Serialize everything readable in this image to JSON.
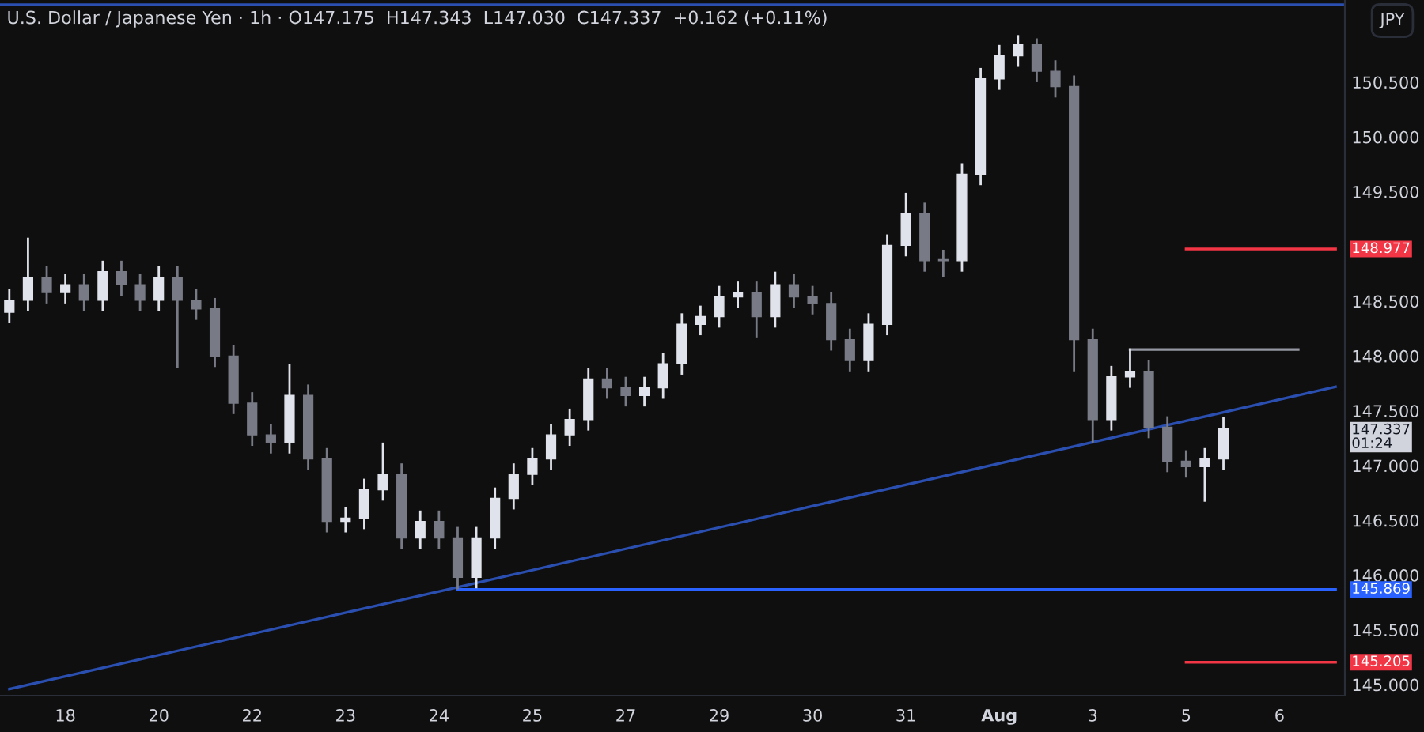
{
  "chart_data": {
    "type": "candlestick",
    "title": "U.S. Dollar / Japanese Yen · 1h · O147.175  H147.343  L147.030  C147.337  +0.162 (+0.11%)",
    "ylabel": "JPY",
    "categories": [
      null,
      null,
      null,
      "18",
      null,
      null,
      null,
      null,
      "20",
      null,
      null,
      null,
      null,
      "22",
      null,
      null,
      null,
      null,
      "23",
      null,
      null,
      null,
      null,
      "24",
      null,
      null,
      null,
      null,
      "25",
      null,
      null,
      null,
      null,
      "27",
      null,
      null,
      null,
      null,
      "29",
      null,
      null,
      null,
      null,
      "30",
      null,
      null,
      null,
      null,
      "31",
      null,
      null,
      null,
      null,
      "Aug",
      null,
      null,
      null,
      null,
      "3",
      null,
      null,
      null,
      null,
      "5",
      null,
      null,
      null,
      null,
      "6",
      null,
      null,
      null
    ],
    "ohlc": [
      [
        148.4,
        148.61,
        148.3,
        148.51
      ],
      [
        148.51,
        149.08,
        148.41,
        148.72
      ],
      [
        148.72,
        148.82,
        148.48,
        148.58
      ],
      [
        148.58,
        148.75,
        148.48,
        148.65
      ],
      [
        148.65,
        148.75,
        148.41,
        148.51
      ],
      [
        148.51,
        148.87,
        148.41,
        148.77
      ],
      [
        148.77,
        148.87,
        148.55,
        148.65
      ],
      [
        148.65,
        148.75,
        148.41,
        148.51
      ],
      [
        148.51,
        148.82,
        148.41,
        148.72
      ],
      [
        148.72,
        148.82,
        147.89,
        148.51
      ],
      [
        148.51,
        148.61,
        148.33,
        148.43
      ],
      [
        148.43,
        148.53,
        147.9,
        148.0
      ],
      [
        148.0,
        148.1,
        147.47,
        147.57
      ],
      [
        147.57,
        147.67,
        147.18,
        147.28
      ],
      [
        147.28,
        147.38,
        147.11,
        147.21
      ],
      [
        147.21,
        147.93,
        147.11,
        147.64
      ],
      [
        147.64,
        147.74,
        146.96,
        147.06
      ],
      [
        147.06,
        147.16,
        146.39,
        146.49
      ],
      [
        146.49,
        146.62,
        146.39,
        146.52
      ],
      [
        146.52,
        146.88,
        146.42,
        146.78
      ],
      [
        146.78,
        147.21,
        146.68,
        146.92
      ],
      [
        146.92,
        147.02,
        146.24,
        146.34
      ],
      [
        146.34,
        146.59,
        146.24,
        146.49
      ],
      [
        146.49,
        146.59,
        146.24,
        146.34
      ],
      [
        146.34,
        146.44,
        145.87,
        145.98
      ],
      [
        145.98,
        146.44,
        145.88,
        146.34
      ],
      [
        146.34,
        146.8,
        146.24,
        146.7
      ],
      [
        146.7,
        147.02,
        146.6,
        146.92
      ],
      [
        146.92,
        147.16,
        146.82,
        147.06
      ],
      [
        147.06,
        147.38,
        146.96,
        147.28
      ],
      [
        147.28,
        147.52,
        147.18,
        147.42
      ],
      [
        147.42,
        147.89,
        147.32,
        147.79
      ],
      [
        147.79,
        147.89,
        147.61,
        147.71
      ],
      [
        147.71,
        147.81,
        147.54,
        147.64
      ],
      [
        147.64,
        147.81,
        147.54,
        147.71
      ],
      [
        147.71,
        148.03,
        147.61,
        147.93
      ],
      [
        147.93,
        148.39,
        147.83,
        148.29
      ],
      [
        148.29,
        148.46,
        148.19,
        148.36
      ],
      [
        148.36,
        148.64,
        148.26,
        148.54
      ],
      [
        148.54,
        148.68,
        148.44,
        148.58
      ],
      [
        148.58,
        148.68,
        148.17,
        148.36
      ],
      [
        148.36,
        148.77,
        148.26,
        148.65
      ],
      [
        148.65,
        148.75,
        148.44,
        148.54
      ],
      [
        148.54,
        148.64,
        148.38,
        148.48
      ],
      [
        148.48,
        148.58,
        148.05,
        148.15
      ],
      [
        148.15,
        148.25,
        147.86,
        147.96
      ],
      [
        147.96,
        148.39,
        147.86,
        148.29
      ],
      [
        148.29,
        149.11,
        148.19,
        149.01
      ],
      [
        149.01,
        149.49,
        148.91,
        149.3
      ],
      [
        149.3,
        149.4,
        148.77,
        148.87
      ],
      [
        148.87,
        148.97,
        148.72,
        148.87
      ],
      [
        148.87,
        149.76,
        148.77,
        149.66
      ],
      [
        149.66,
        150.63,
        149.56,
        150.53
      ],
      [
        150.53,
        150.84,
        150.43,
        150.74
      ],
      [
        150.74,
        150.93,
        150.64,
        150.84
      ],
      [
        150.84,
        150.9,
        150.5,
        150.6
      ],
      [
        150.6,
        150.7,
        150.36,
        150.46
      ],
      [
        150.46,
        150.56,
        147.86,
        148.15
      ],
      [
        148.15,
        148.25,
        147.21,
        147.42
      ],
      [
        147.42,
        147.91,
        147.32,
        147.81
      ],
      [
        147.81,
        148.07,
        147.71,
        147.86
      ],
      [
        147.86,
        147.96,
        147.25,
        147.35
      ],
      [
        147.35,
        147.45,
        146.94,
        147.04
      ],
      [
        147.04,
        147.14,
        146.89,
        146.99
      ],
      [
        146.99,
        147.16,
        146.67,
        147.06
      ],
      [
        147.06,
        147.44,
        146.96,
        147.34
      ],
      null,
      null,
      null,
      null,
      null,
      null
    ],
    "colors": [
      "#e0e3eb",
      "#e0e3eb",
      "#787b86",
      "#e0e3eb",
      "#787b86",
      "#e0e3eb",
      "#787b86",
      "#787b86",
      "#e0e3eb",
      "#787b86",
      "#787b86",
      "#787b86",
      "#787b86",
      "#787b86",
      "#787b86",
      "#e0e3eb",
      "#787b86",
      "#787b86",
      "#e0e3eb",
      "#e0e3eb",
      "#e0e3eb",
      "#787b86",
      "#e0e3eb",
      "#787b86",
      "#787b86",
      "#e0e3eb",
      "#e0e3eb",
      "#e0e3eb",
      "#e0e3eb",
      "#e0e3eb",
      "#e0e3eb",
      "#e0e3eb",
      "#787b86",
      "#787b86",
      "#e0e3eb",
      "#e0e3eb",
      "#e0e3eb",
      "#e0e3eb",
      "#e0e3eb",
      "#e0e3eb",
      "#787b86",
      "#e0e3eb",
      "#787b86",
      "#787b86",
      "#787b86",
      "#787b86",
      "#e0e3eb",
      "#e0e3eb",
      "#e0e3eb",
      "#787b86",
      "#787b86",
      "#e0e3eb",
      "#e0e3eb",
      "#e0e3eb",
      "#e0e3eb",
      "#787b86",
      "#787b86",
      "#787b86",
      "#787b86",
      "#e0e3eb",
      "#e0e3eb",
      "#787b86",
      "#787b86",
      "#787b86",
      "#e0e3eb",
      "#e0e3eb",
      null,
      null,
      null,
      null,
      null,
      null
    ],
    "series": [
      {
        "type": "line",
        "color": "#2a4fb0",
        "values": [
          144.96,
          null,
          null,
          null,
          null,
          null,
          null,
          null,
          null,
          null,
          null,
          null,
          null,
          null,
          null,
          null,
          null,
          null,
          null,
          null,
          null,
          null,
          null,
          null,
          145.89,
          null,
          null,
          null,
          null,
          null,
          null,
          null,
          null,
          null,
          null,
          null,
          null,
          null,
          null,
          null,
          null,
          null,
          null,
          null,
          null,
          null,
          null,
          null,
          null,
          null,
          null,
          null,
          null,
          null,
          null,
          null,
          null,
          null,
          null,
          null,
          null,
          null,
          null,
          null,
          null,
          null,
          null,
          null,
          null,
          null,
          null,
          147.72
        ]
      },
      {
        "type": "line",
        "color": "#2962ff",
        "values": [
          null,
          null,
          null,
          null,
          null,
          null,
          null,
          null,
          null,
          null,
          null,
          null,
          null,
          null,
          null,
          null,
          null,
          null,
          null,
          null,
          null,
          null,
          null,
          null,
          145.869,
          145.869,
          145.869,
          145.869,
          145.869,
          145.869,
          145.869,
          145.869,
          145.869,
          145.869,
          145.869,
          145.869,
          145.869,
          145.869,
          145.869,
          145.869,
          145.869,
          145.869,
          145.869,
          145.869,
          145.869,
          145.869,
          145.869,
          145.869,
          145.869,
          145.869,
          145.869,
          145.869,
          145.869,
          145.869,
          145.869,
          145.869,
          145.869,
          145.869,
          145.869,
          145.869,
          145.869,
          145.869,
          145.869,
          145.869,
          145.869,
          145.869,
          145.869,
          145.869,
          145.869,
          145.869,
          145.869,
          145.869
        ],
        "value_labels": [
          null,
          null,
          null,
          null,
          null,
          null,
          null,
          null,
          null,
          null,
          null,
          null,
          null,
          null,
          null,
          null,
          null,
          null,
          null,
          null,
          null,
          null,
          null,
          null,
          null,
          null,
          null,
          null,
          null,
          null,
          null,
          null,
          null,
          null,
          null,
          null,
          null,
          null,
          null,
          null,
          null,
          null,
          null,
          null,
          null,
          null,
          null,
          null,
          null,
          null,
          null,
          null,
          null,
          null,
          null,
          null,
          null,
          null,
          null,
          null,
          null,
          null,
          null,
          null,
          null,
          null,
          null,
          null,
          null,
          null,
          null,
          "145.869"
        ]
      },
      {
        "type": "line",
        "color": "#f23645",
        "values": [
          null,
          null,
          null,
          null,
          null,
          null,
          null,
          null,
          null,
          null,
          null,
          null,
          null,
          null,
          null,
          null,
          null,
          null,
          null,
          null,
          null,
          null,
          null,
          null,
          null,
          null,
          null,
          null,
          null,
          null,
          null,
          null,
          null,
          null,
          null,
          null,
          null,
          null,
          null,
          null,
          null,
          null,
          null,
          null,
          null,
          null,
          null,
          null,
          null,
          null,
          null,
          null,
          null,
          null,
          null,
          null,
          null,
          null,
          null,
          null,
          null,
          null,
          null,
          148.977,
          148.977,
          148.977,
          148.977,
          148.977,
          148.977,
          148.977,
          148.977,
          148.977
        ],
        "value_labels": [
          null,
          null,
          null,
          null,
          null,
          null,
          null,
          null,
          null,
          null,
          null,
          null,
          null,
          null,
          null,
          null,
          null,
          null,
          null,
          null,
          null,
          null,
          null,
          null,
          null,
          null,
          null,
          null,
          null,
          null,
          null,
          null,
          null,
          null,
          null,
          null,
          null,
          null,
          null,
          null,
          null,
          null,
          null,
          null,
          null,
          null,
          null,
          null,
          null,
          null,
          null,
          null,
          null,
          null,
          null,
          null,
          null,
          null,
          null,
          null,
          null,
          null,
          null,
          null,
          null,
          null,
          null,
          null,
          null,
          null,
          null,
          "148.977"
        ]
      },
      {
        "type": "line",
        "color": "#f23645",
        "values": [
          null,
          null,
          null,
          null,
          null,
          null,
          null,
          null,
          null,
          null,
          null,
          null,
          null,
          null,
          null,
          null,
          null,
          null,
          null,
          null,
          null,
          null,
          null,
          null,
          null,
          null,
          null,
          null,
          null,
          null,
          null,
          null,
          null,
          null,
          null,
          null,
          null,
          null,
          null,
          null,
          null,
          null,
          null,
          null,
          null,
          null,
          null,
          null,
          null,
          null,
          null,
          null,
          null,
          null,
          null,
          null,
          null,
          null,
          null,
          null,
          null,
          null,
          null,
          145.205,
          145.205,
          145.205,
          145.205,
          145.205,
          145.205,
          145.205,
          145.205,
          145.205
        ],
        "value_labels": [
          null,
          null,
          null,
          null,
          null,
          null,
          null,
          null,
          null,
          null,
          null,
          null,
          null,
          null,
          null,
          null,
          null,
          null,
          null,
          null,
          null,
          null,
          null,
          null,
          null,
          null,
          null,
          null,
          null,
          null,
          null,
          null,
          null,
          null,
          null,
          null,
          null,
          null,
          null,
          null,
          null,
          null,
          null,
          null,
          null,
          null,
          null,
          null,
          null,
          null,
          null,
          null,
          null,
          null,
          null,
          null,
          null,
          null,
          null,
          null,
          null,
          null,
          null,
          null,
          null,
          null,
          null,
          null,
          null,
          null,
          null,
          "145.205"
        ]
      },
      {
        "type": "line",
        "color": "#9598a1",
        "values": [
          null,
          null,
          null,
          null,
          null,
          null,
          null,
          null,
          null,
          null,
          null,
          null,
          null,
          null,
          null,
          null,
          null,
          null,
          null,
          null,
          null,
          null,
          null,
          null,
          null,
          null,
          null,
          null,
          null,
          null,
          null,
          null,
          null,
          null,
          null,
          null,
          null,
          null,
          null,
          null,
          null,
          null,
          null,
          null,
          null,
          null,
          null,
          null,
          null,
          null,
          null,
          null,
          null,
          null,
          null,
          null,
          null,
          null,
          null,
          null,
          148.06,
          148.06,
          148.06,
          148.06,
          148.06,
          148.06,
          148.06,
          148.06,
          148.06,
          148.06,
          null,
          null
        ]
      }
    ],
    "ref_lines": [
      {
        "axis": "y",
        "value": 151.21,
        "color": "#2a4fb0"
      }
    ],
    "annotations": [
      "147.337\n01:24"
    ],
    "ylim": [
      144.9,
      151.25
    ],
    "yticks": [
      {
        "value": 145,
        "label": "145.000"
      },
      {
        "value": 145.5,
        "label": "145.500"
      },
      {
        "value": 146,
        "label": "146.000"
      },
      {
        "value": 146.5,
        "label": "146.500"
      },
      {
        "value": 147,
        "label": "147.000"
      },
      {
        "value": 147.5,
        "label": "147.500"
      },
      {
        "value": 148,
        "label": "148.000"
      },
      {
        "value": 148.5,
        "label": "148.500"
      },
      {
        "value": 149.5,
        "label": "149.500"
      },
      {
        "value": 150,
        "label": "150.000"
      },
      {
        "value": 150.5,
        "label": "150.500"
      }
    ],
    "grid": false,
    "legend": false
  }
}
